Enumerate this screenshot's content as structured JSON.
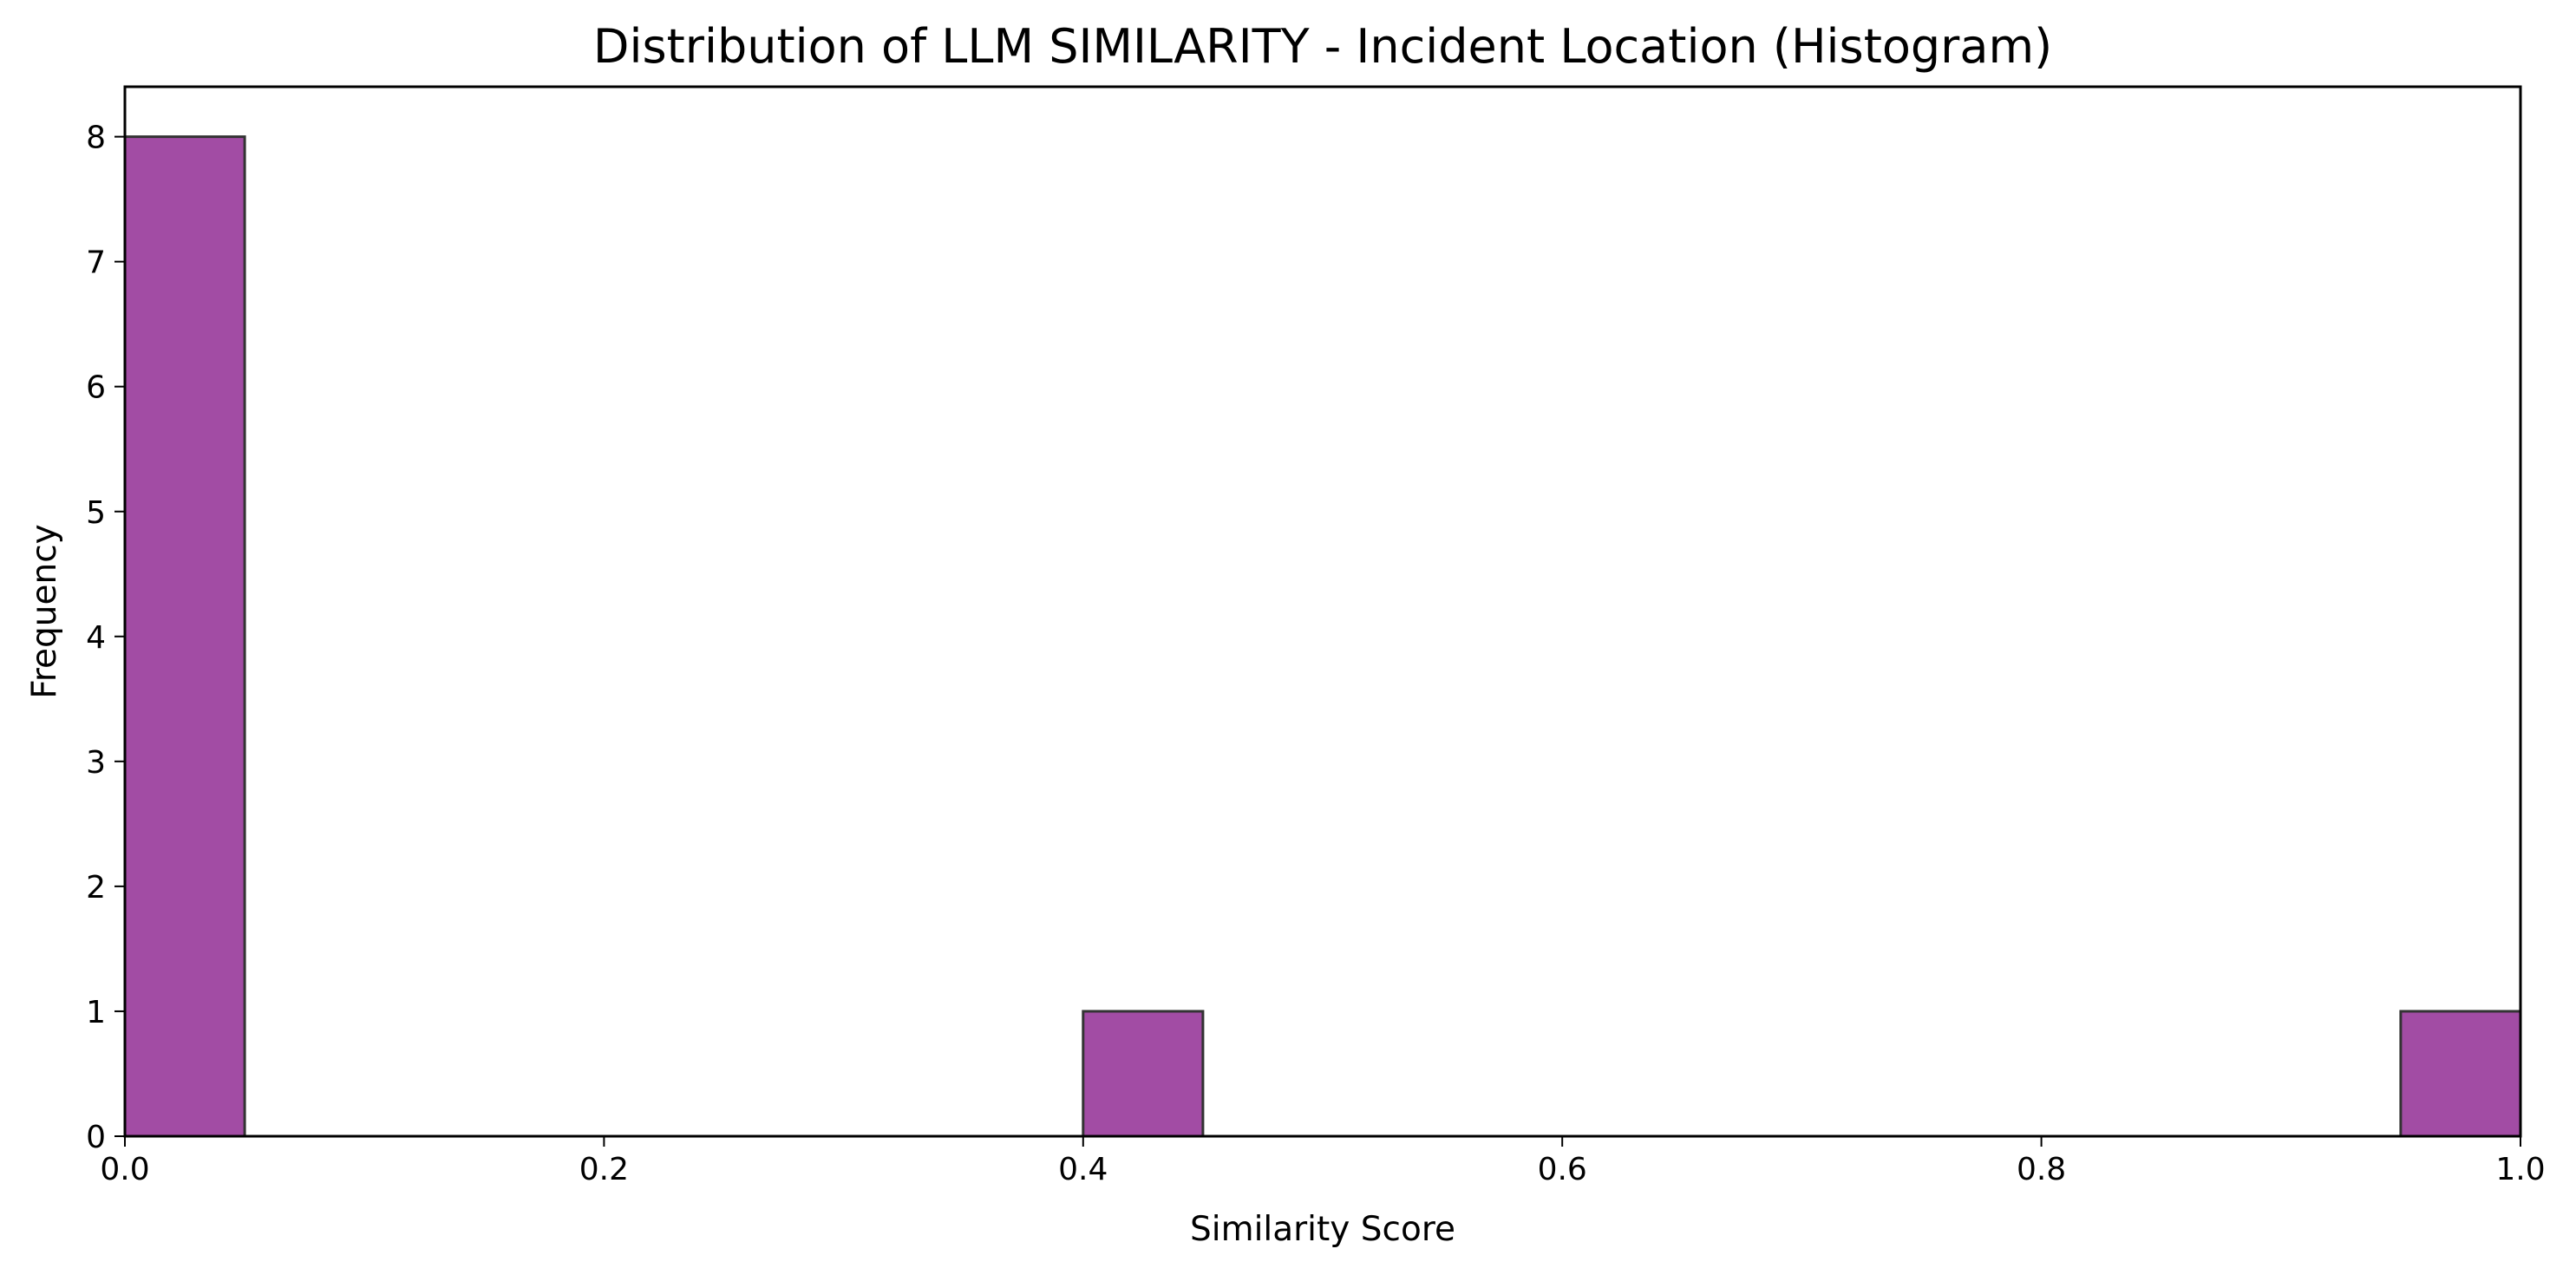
{
  "chart_data": {
    "type": "bar",
    "subtype": "histogram",
    "title": "Distribution of LLM SIMILARITY - Incident Location (Histogram)",
    "xlabel": "Similarity Score",
    "ylabel": "Frequency",
    "xlim": [
      0,
      1
    ],
    "ylim": [
      0,
      8.4
    ],
    "bin_width": 0.05,
    "bins": [
      {
        "start": 0.0,
        "end": 0.05,
        "count": 8
      },
      {
        "start": 0.05,
        "end": 0.1,
        "count": 0
      },
      {
        "start": 0.1,
        "end": 0.15,
        "count": 0
      },
      {
        "start": 0.15,
        "end": 0.2,
        "count": 0
      },
      {
        "start": 0.2,
        "end": 0.25,
        "count": 0
      },
      {
        "start": 0.25,
        "end": 0.3,
        "count": 0
      },
      {
        "start": 0.3,
        "end": 0.35,
        "count": 0
      },
      {
        "start": 0.35,
        "end": 0.4,
        "count": 0
      },
      {
        "start": 0.4,
        "end": 0.45,
        "count": 1
      },
      {
        "start": 0.45,
        "end": 0.5,
        "count": 0
      },
      {
        "start": 0.5,
        "end": 0.55,
        "count": 0
      },
      {
        "start": 0.55,
        "end": 0.6,
        "count": 0
      },
      {
        "start": 0.6,
        "end": 0.65,
        "count": 0
      },
      {
        "start": 0.65,
        "end": 0.7,
        "count": 0
      },
      {
        "start": 0.7,
        "end": 0.75,
        "count": 0
      },
      {
        "start": 0.75,
        "end": 0.8,
        "count": 0
      },
      {
        "start": 0.8,
        "end": 0.85,
        "count": 0
      },
      {
        "start": 0.85,
        "end": 0.9,
        "count": 0
      },
      {
        "start": 0.9,
        "end": 0.95,
        "count": 0
      },
      {
        "start": 0.95,
        "end": 1.0,
        "count": 1
      }
    ],
    "x_ticks": [
      {
        "value": 0.0,
        "label": "0.0"
      },
      {
        "value": 0.2,
        "label": "0.2"
      },
      {
        "value": 0.4,
        "label": "0.4"
      },
      {
        "value": 0.6,
        "label": "0.6"
      },
      {
        "value": 0.8,
        "label": "0.8"
      },
      {
        "value": 1.0,
        "label": "1.0"
      }
    ],
    "y_ticks": [
      {
        "value": 0,
        "label": "0"
      },
      {
        "value": 1,
        "label": "1"
      },
      {
        "value": 2,
        "label": "2"
      },
      {
        "value": 3,
        "label": "3"
      },
      {
        "value": 4,
        "label": "4"
      },
      {
        "value": 5,
        "label": "5"
      },
      {
        "value": 6,
        "label": "6"
      },
      {
        "value": 7,
        "label": "7"
      },
      {
        "value": 8,
        "label": "8"
      }
    ],
    "grid": false,
    "legend": "none",
    "colors": {
      "bar_fill": "#a24ca4",
      "bar_edge": "#333333",
      "axis": "#000000"
    }
  }
}
